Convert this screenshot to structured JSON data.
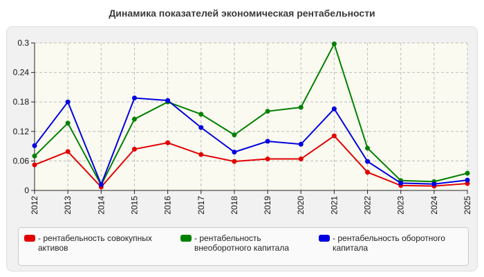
{
  "title": "Динамика показателей экономическая рентабельности",
  "chart_data": {
    "type": "line",
    "categories": [
      "2012",
      "2013",
      "2014",
      "2015",
      "2016",
      "2017",
      "2018",
      "2019",
      "2020",
      "2021",
      "2022",
      "2023",
      "2024",
      "2025"
    ],
    "ylim": [
      0,
      0.3
    ],
    "yticks": [
      "0",
      "0.06",
      "0.12",
      "0.18",
      "0.24",
      "0.3"
    ],
    "grid": true,
    "legend_position": "bottom",
    "series": [
      {
        "name": "рентабельность совокупных\nактивов",
        "color": "#e00000",
        "values": [
          0.052,
          0.079,
          0.007,
          0.084,
          0.097,
          0.073,
          0.059,
          0.064,
          0.064,
          0.111,
          0.037,
          0.01,
          0.009,
          0.014
        ]
      },
      {
        "name": "рентабельность\nвнеоборотного капитала",
        "color": "#008000",
        "values": [
          0.07,
          0.137,
          0.011,
          0.145,
          0.18,
          0.155,
          0.113,
          0.161,
          0.169,
          0.298,
          0.086,
          0.02,
          0.018,
          0.035
        ]
      },
      {
        "name": "рентабельность оборотного\nкапитала",
        "color": "#0000e0",
        "values": [
          0.091,
          0.18,
          0.012,
          0.188,
          0.183,
          0.128,
          0.078,
          0.1,
          0.094,
          0.166,
          0.059,
          0.015,
          0.013,
          0.021
        ]
      }
    ]
  }
}
